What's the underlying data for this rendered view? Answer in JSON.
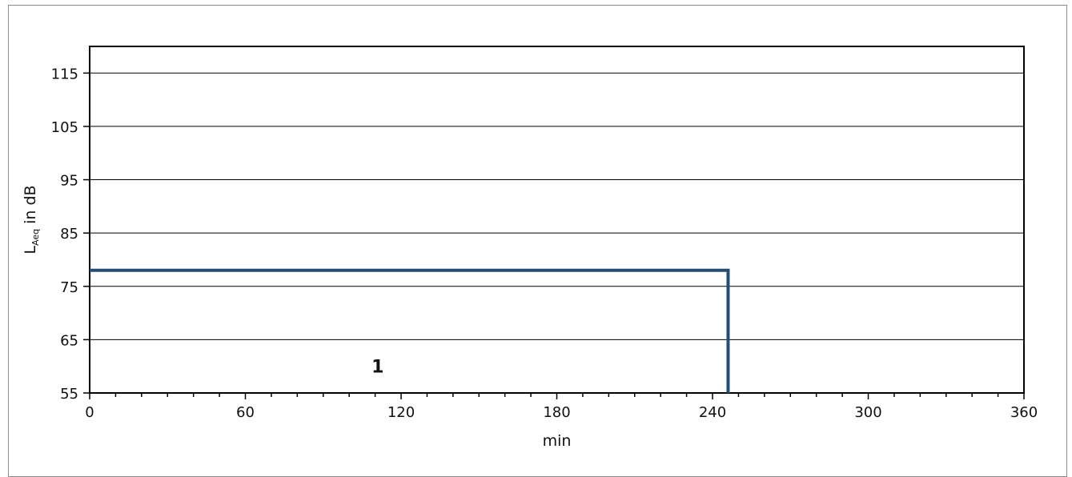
{
  "chart_data": {
    "type": "line",
    "title": "",
    "xlabel": "min",
    "ylabel": {
      "symbol": "L",
      "subscript": "Aeq",
      "unit": " in dB"
    },
    "xlim": [
      0,
      360
    ],
    "ylim": [
      55,
      120
    ],
    "x_ticks": [
      0,
      60,
      120,
      180,
      240,
      300,
      360
    ],
    "x_minor_step": 10,
    "y_ticks": [
      55,
      65,
      75,
      85,
      95,
      105,
      115
    ],
    "grid": "horizontal",
    "legend": "none",
    "series": [
      {
        "x": [
          0,
          246,
          246
        ],
        "y": [
          78,
          78,
          55
        ]
      }
    ],
    "annotations": [
      {
        "text": "1",
        "x": 111,
        "y": 60
      }
    ],
    "colors": {
      "series": "#1f4e79",
      "grid": "#000000",
      "frame": "#8c8c8c"
    }
  }
}
